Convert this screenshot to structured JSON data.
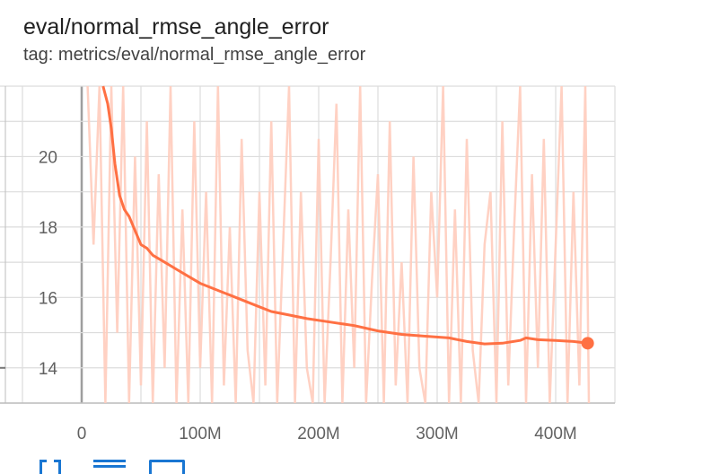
{
  "header": {
    "title": "eval/normal_rmse_angle_error",
    "tag": "tag: metrics/eval/normal_rmse_angle_error"
  },
  "chart_data": {
    "type": "line",
    "title": "eval/normal_rmse_angle_error",
    "xlabel": "",
    "ylabel": "",
    "xlim": [
      -50000000,
      450000000
    ],
    "ylim": [
      13,
      22
    ],
    "x_ticks": [
      0,
      100000000,
      200000000,
      300000000,
      400000000
    ],
    "x_tick_labels": [
      "0",
      "100M",
      "200M",
      "300M",
      "400M"
    ],
    "y_ticks": [
      14,
      16,
      18,
      20
    ],
    "y_tick_labels": [
      "14",
      "16",
      "18",
      "20"
    ],
    "grid": true,
    "legend": "none",
    "series": [
      {
        "role": "smoothed",
        "color": "#ff7043",
        "x": [
          18000000,
          22000000,
          25000000,
          28000000,
          32000000,
          36000000,
          40000000,
          45000000,
          50000000,
          55000000,
          60000000,
          70000000,
          80000000,
          90000000,
          100000000,
          115000000,
          130000000,
          145000000,
          160000000,
          175000000,
          190000000,
          210000000,
          230000000,
          250000000,
          270000000,
          290000000,
          310000000,
          325000000,
          340000000,
          355000000,
          370000000,
          375000000,
          385000000,
          400000000,
          415000000,
          427000000
        ],
        "y": [
          22,
          21.5,
          20.8,
          19.8,
          18.9,
          18.5,
          18.3,
          17.9,
          17.5,
          17.4,
          17.2,
          17.0,
          16.8,
          16.6,
          16.4,
          16.2,
          16.0,
          15.8,
          15.6,
          15.5,
          15.4,
          15.3,
          15.2,
          15.05,
          14.95,
          14.9,
          14.85,
          14.75,
          14.68,
          14.7,
          14.78,
          14.85,
          14.8,
          14.78,
          14.75,
          14.7
        ]
      },
      {
        "role": "raw",
        "color": "#ffccbc",
        "x": [
          5000000,
          10000000,
          15000000,
          20000000,
          25000000,
          30000000,
          35000000,
          40000000,
          45000000,
          50000000,
          55000000,
          60000000,
          65000000,
          70000000,
          75000000,
          80000000,
          85000000,
          90000000,
          95000000,
          100000000,
          105000000,
          110000000,
          115000000,
          120000000,
          125000000,
          130000000,
          135000000,
          140000000,
          145000000,
          150000000,
          155000000,
          160000000,
          165000000,
          170000000,
          175000000,
          180000000,
          185000000,
          190000000,
          195000000,
          200000000,
          205000000,
          210000000,
          215000000,
          220000000,
          225000000,
          230000000,
          235000000,
          240000000,
          245000000,
          250000000,
          255000000,
          260000000,
          265000000,
          270000000,
          275000000,
          280000000,
          285000000,
          290000000,
          295000000,
          300000000,
          305000000,
          310000000,
          315000000,
          320000000,
          325000000,
          330000000,
          335000000,
          340000000,
          345000000,
          350000000,
          355000000,
          360000000,
          365000000,
          370000000,
          375000000,
          380000000,
          385000000,
          390000000,
          395000000,
          400000000,
          405000000,
          410000000,
          415000000,
          420000000,
          425000000,
          428000000
        ],
        "y": [
          22,
          17.5,
          22,
          13,
          22,
          15,
          22,
          13,
          20,
          13.5,
          21,
          13,
          19.5,
          14,
          22,
          13,
          18.5,
          13,
          21,
          14,
          19,
          13,
          22,
          13.5,
          18,
          13,
          20.5,
          14.5,
          13,
          19,
          13.5,
          21,
          13,
          17.5,
          22,
          13,
          19,
          14,
          13,
          20.5,
          13,
          17,
          21.5,
          13,
          18.5,
          14,
          22,
          13,
          16.5,
          19.5,
          13,
          21,
          13.5,
          17,
          13,
          20,
          14,
          13,
          19,
          16,
          22,
          13,
          18.5,
          13,
          20.5,
          14.5,
          13,
          17.5,
          19,
          13,
          21,
          13.5,
          18,
          22,
          13,
          19.5,
          14,
          20.5,
          13,
          17.5,
          22,
          13,
          19,
          13.5,
          22,
          13
        ]
      }
    ]
  }
}
